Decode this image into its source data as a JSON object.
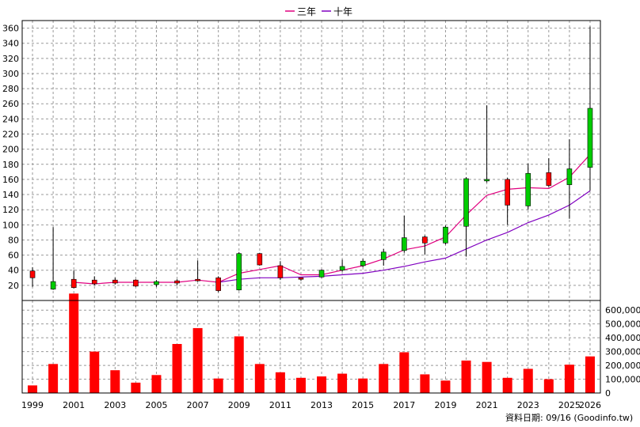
{
  "chart_data": {
    "type": "candlestick+line+bar",
    "legend": [
      {
        "label": "三年",
        "color": "#e0007f"
      },
      {
        "label": "十年",
        "color": "#8000c0"
      }
    ],
    "years": [
      1999,
      2000,
      2001,
      2002,
      2003,
      2004,
      2005,
      2006,
      2007,
      2008,
      2009,
      2010,
      2011,
      2012,
      2013,
      2014,
      2015,
      2016,
      2017,
      2018,
      2019,
      2020,
      2021,
      2022,
      2023,
      2024,
      2025,
      2026
    ],
    "x_tick_labels": [
      "1999",
      "2001",
      "2003",
      "2005",
      "2007",
      "2009",
      "2011",
      "2013",
      "2015",
      "2017",
      "2019",
      "2021",
      "2023",
      "2025",
      "2026"
    ],
    "candles": [
      {
        "o": 30,
        "c": 39,
        "h": 44,
        "l": 18
      },
      {
        "o": 25,
        "c": 15,
        "h": 97,
        "l": 14
      },
      {
        "o": 17,
        "c": 28,
        "h": 40,
        "l": 16
      },
      {
        "o": 22,
        "c": 27,
        "h": 32,
        "l": 20
      },
      {
        "o": 23,
        "c": 27,
        "h": 30,
        "l": 21
      },
      {
        "o": 19,
        "c": 27,
        "h": 28,
        "l": 18
      },
      {
        "o": 25,
        "c": 21,
        "h": 27,
        "l": 18
      },
      {
        "o": 23,
        "c": 26,
        "h": 28,
        "l": 20
      },
      {
        "o": 26,
        "c": 28,
        "h": 53,
        "l": 25
      },
      {
        "o": 13,
        "c": 30,
        "h": 32,
        "l": 11
      },
      {
        "o": 62,
        "c": 14,
        "h": 64,
        "l": 13
      },
      {
        "o": 47,
        "c": 62,
        "h": 63,
        "l": 46
      },
      {
        "o": 30,
        "c": 46,
        "h": 52,
        "l": 27
      },
      {
        "o": 28,
        "c": 30,
        "h": 30,
        "l": 26
      },
      {
        "o": 40,
        "c": 31,
        "h": 41,
        "l": 30
      },
      {
        "o": 45,
        "c": 40,
        "h": 54,
        "l": 38
      },
      {
        "o": 52,
        "c": 46,
        "h": 55,
        "l": 44
      },
      {
        "o": 64,
        "c": 54,
        "h": 68,
        "l": 46
      },
      {
        "o": 83,
        "c": 66,
        "h": 112,
        "l": 63
      },
      {
        "o": 76,
        "c": 84,
        "h": 86,
        "l": 61
      },
      {
        "o": 97,
        "c": 76,
        "h": 99,
        "l": 74
      },
      {
        "o": 161,
        "c": 98,
        "h": 163,
        "l": 58
      },
      {
        "o": 160,
        "c": 158,
        "h": 258,
        "l": 156
      },
      {
        "o": 126,
        "c": 160,
        "h": 162,
        "l": 100
      },
      {
        "o": 168,
        "c": 125,
        "h": 181,
        "l": 120
      },
      {
        "o": 152,
        "c": 169,
        "h": 188,
        "l": 150
      },
      {
        "o": 174,
        "c": 153,
        "h": 213,
        "l": 108
      },
      {
        "o": 254,
        "c": 176,
        "h": 362,
        "l": 145
      }
    ],
    "line_3y": [
      null,
      null,
      24,
      22,
      24,
      24,
      24,
      24,
      27,
      24,
      36,
      41,
      46,
      34,
      34,
      40,
      46,
      55,
      67,
      72,
      84,
      113,
      139,
      147,
      149,
      148,
      163,
      193
    ],
    "line_10y": [
      null,
      null,
      null,
      null,
      null,
      null,
      null,
      null,
      null,
      24,
      28,
      30,
      30,
      31,
      32,
      34,
      36,
      40,
      45,
      51,
      56,
      68,
      80,
      90,
      103,
      113,
      126,
      145
    ],
    "volume": [
      55000,
      210000,
      720000,
      300000,
      165000,
      75000,
      130000,
      355000,
      470000,
      105000,
      410000,
      210000,
      150000,
      110000,
      120000,
      140000,
      105000,
      210000,
      295000,
      135000,
      90000,
      235000,
      225000,
      110000,
      175000,
      100000,
      205000,
      265000
    ],
    "price_axis": {
      "min": 0,
      "max": 370,
      "ticks": [
        20,
        40,
        60,
        80,
        100,
        120,
        140,
        160,
        180,
        200,
        220,
        240,
        260,
        280,
        300,
        320,
        340,
        360
      ]
    },
    "volume_axis": {
      "min": 0,
      "max": 670000,
      "ticks": [
        0,
        100000,
        200000,
        300000,
        400000,
        500000,
        600000
      ],
      "tick_labels": [
        "0",
        "100,000",
        "200,000",
        "300,000",
        "400,000",
        "500,000",
        "600,000"
      ]
    },
    "colors": {
      "up": "#ff0000",
      "down": "#00cc00",
      "wick": "#000000",
      "volume": "#ff0000",
      "grid": "#999999"
    },
    "grid": true,
    "legend_position": "top-center",
    "source_label": "資料日期: 09/16  (Goodinfo.tw)"
  }
}
